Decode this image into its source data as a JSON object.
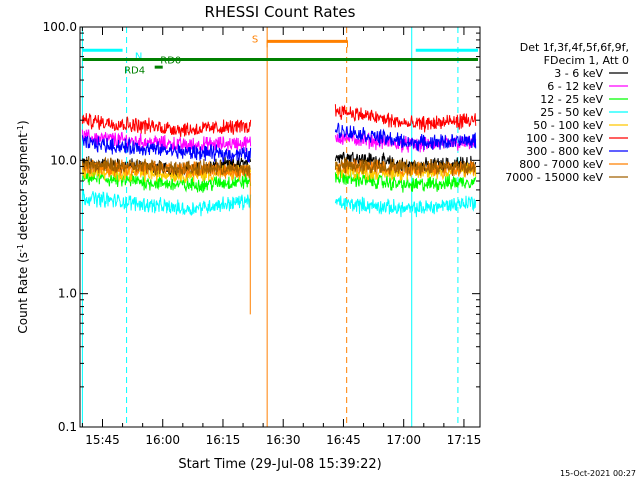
{
  "chart_data": {
    "type": "line",
    "title": "RHESSI Count Rates",
    "xlabel": "Start Time (29-Jul-08 15:39:22)",
    "ylabel_main": "Count Rate (s",
    "ylabel_sup1": "-1",
    "ylabel_mid": " detector segment",
    "ylabel_sup2": "-1",
    "ylabel_end": ")",
    "timestamp": "15-Oct-2021 00:27",
    "yscale": "log",
    "ylim": [
      0.1,
      100
    ],
    "xlim_minutes": [
      939.4,
      1039.0
    ],
    "x_ticks": [
      {
        "min": 945,
        "label": "15:45"
      },
      {
        "min": 960,
        "label": "16:00"
      },
      {
        "min": 975,
        "label": "16:15"
      },
      {
        "min": 990,
        "label": "16:30"
      },
      {
        "min": 1005,
        "label": "16:45"
      },
      {
        "min": 1020,
        "label": "17:00"
      },
      {
        "min": 1035,
        "label": "17:15"
      }
    ],
    "y_ticks": [
      {
        "value": 0.1,
        "label": "0.1"
      },
      {
        "value": 1,
        "label": "1.0"
      },
      {
        "value": 10,
        "label": "10.0"
      },
      {
        "value": 100,
        "label": "100.0"
      }
    ],
    "legend": {
      "header1": "Det 1f,3f,4f,5f,6f,9f,",
      "header2": "FDecim 1, Att 0",
      "entries": [
        {
          "label": "3 - 6 keV",
          "color": "#000000"
        },
        {
          "label": "6 - 12 keV",
          "color": "#ff00ff"
        },
        {
          "label": "12 - 25 keV",
          "color": "#00ff00"
        },
        {
          "label": "25 - 50 keV",
          "color": "#00ffff"
        },
        {
          "label": "50 - 100 keV",
          "color": "#ffc800"
        },
        {
          "label": "100 - 300 keV",
          "color": "#ff0000"
        },
        {
          "label": "300 - 800 keV",
          "color": "#0000ff"
        },
        {
          "label": "800 - 7000 keV",
          "color": "#ff8000"
        },
        {
          "label": "7000 - 15000 keV",
          "color": "#a06000"
        }
      ]
    },
    "series": [
      {
        "name": "3 - 6 keV",
        "color": "#000000",
        "segments": [
          {
            "t": [
              940,
              966,
              982
            ],
            "y": [
              9.5,
              8.5,
              9.5
            ]
          },
          {
            "t": [
              1003,
              1022,
              1038
            ],
            "y": [
              11,
              9,
              9.5
            ]
          }
        ]
      },
      {
        "name": "6 - 12 keV",
        "color": "#ff00ff",
        "segments": [
          {
            "t": [
              940,
              966,
              982
            ],
            "y": [
              15,
              13,
              13.5
            ]
          },
          {
            "t": [
              1003,
              1022,
              1038
            ],
            "y": [
              15,
              13,
              13.5
            ]
          }
        ]
      },
      {
        "name": "12 - 25 keV",
        "color": "#00ff00",
        "segments": [
          {
            "t": [
              940,
              966,
              982
            ],
            "y": [
              7.5,
              6.5,
              7
            ]
          },
          {
            "t": [
              1003,
              1022,
              1038
            ],
            "y": [
              7.5,
              6.5,
              7
            ]
          }
        ]
      },
      {
        "name": "25 - 50 keV",
        "color": "#00ffff",
        "segments": [
          {
            "t": [
              940,
              966,
              982
            ],
            "y": [
              5.3,
              4.3,
              5
            ]
          },
          {
            "t": [
              1003,
              1022,
              1038
            ],
            "y": [
              4.8,
              4.3,
              4.9
            ]
          }
        ]
      },
      {
        "name": "50 - 100 keV",
        "color": "#ffc800",
        "segments": [
          {
            "t": [
              940,
              966,
              982
            ],
            "y": [
              8.2,
              7.8,
              8.2
            ]
          },
          {
            "t": [
              1003,
              1022,
              1038
            ],
            "y": [
              8.3,
              8,
              8.4
            ]
          }
        ]
      },
      {
        "name": "100 - 300 keV",
        "color": "#ff0000",
        "segments": [
          {
            "t": [
              940,
              966,
              982
            ],
            "y": [
              20,
              17,
              18
            ]
          },
          {
            "t": [
              1003,
              1022,
              1038
            ],
            "y": [
              24,
              18.5,
              20
            ]
          }
        ]
      },
      {
        "name": "300 - 800 keV",
        "color": "#0000ff",
        "segments": [
          {
            "t": [
              940,
              966,
              982
            ],
            "y": [
              13.5,
              11.5,
              11
            ]
          },
          {
            "t": [
              1003,
              1022,
              1038
            ],
            "y": [
              17,
              13.5,
              14
            ]
          }
        ]
      },
      {
        "name": "800 - 7000 keV",
        "color": "#ff8000",
        "segments": [
          {
            "t": [
              940,
              966,
              982
            ],
            "y": [
              9,
              8.5,
              8.3
            ]
          },
          {
            "t": [
              1003,
              1022,
              1038
            ],
            "y": [
              9,
              8.7,
              8.8
            ]
          }
        ]
      },
      {
        "name": "7000 - 15000 keV",
        "color": "#a06000",
        "segments": [
          {
            "t": [
              940,
              966,
              982
            ],
            "y": [
              9.2,
              8.8,
              8.5
            ]
          },
          {
            "t": [
              1003,
              1022,
              1038
            ],
            "y": [
              9.1,
              8.9,
              8.9
            ]
          }
        ]
      }
    ],
    "spikes": [
      {
        "t": 981.8,
        "y": 0.7,
        "color": "#ff8000"
      }
    ],
    "flags": [
      {
        "label": "N",
        "color": "#00ffff",
        "t0": 940,
        "t1": 950,
        "y": 67,
        "label_t": 954,
        "label_y": 61
      },
      {
        "label": "N",
        "color": "#00ffff",
        "t0": 1023,
        "t1": 1038.5,
        "y": 67,
        "label_t": null,
        "label_y": null
      },
      {
        "label": "S",
        "color": "#ff8000",
        "t0": 986,
        "t1": 1006,
        "y": 78,
        "label_t": 983,
        "label_y": 82
      },
      {
        "label": "RD0",
        "color": "#008000",
        "t0": 940,
        "t1": 1038.5,
        "y": 57,
        "label_t": 962,
        "label_y": 57
      },
      {
        "label": "RD4",
        "color": "#008000",
        "t0": 958,
        "t1": 960,
        "y": 50,
        "label_t": 953,
        "label_y": 48
      }
    ],
    "vlines": [
      {
        "t": 940.0,
        "color": "#00ffff",
        "dash": false
      },
      {
        "t": 951.0,
        "color": "#00ffff",
        "dash": true
      },
      {
        "t": 1022.0,
        "color": "#00ffff",
        "dash": false
      },
      {
        "t": 1033.5,
        "color": "#00ffff",
        "dash": true
      },
      {
        "t": 986.0,
        "color": "#ff8000",
        "dash": false
      },
      {
        "t": 1005.8,
        "color": "#ff8000",
        "dash": true
      }
    ]
  }
}
